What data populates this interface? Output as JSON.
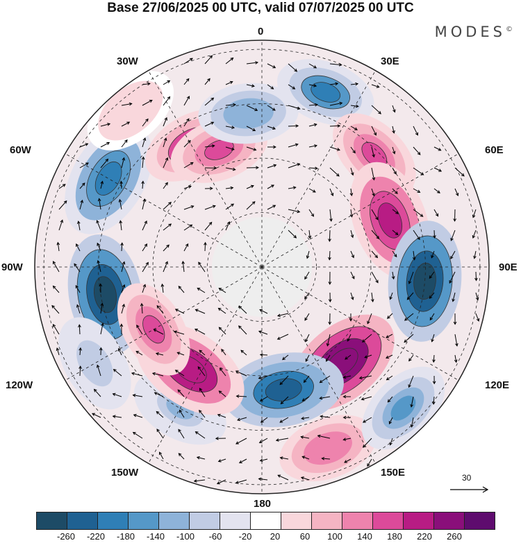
{
  "title": "Base 27/06/2025 00 UTC, valid 07/07/2025 00 UTC",
  "brand": "MODES",
  "brand_mark": "©",
  "longitude_labels": {
    "top": "0",
    "top_left": "30W",
    "top_right": "30E",
    "upper_left": "60W",
    "upper_right": "60E",
    "left": "90W",
    "right": "90E",
    "lower_left": "120W",
    "lower_right": "120E",
    "bottom_left": "150W",
    "bottom_right": "150E",
    "bottom": "180"
  },
  "colorbar": {
    "ticks": [
      "-260",
      "-220",
      "-180",
      "-140",
      "-100",
      "-60",
      "-20",
      "20",
      "60",
      "100",
      "140",
      "180",
      "220",
      "260"
    ],
    "colors": [
      "#1d4b66",
      "#1f6192",
      "#2f7fb6",
      "#5598c8",
      "#8eb3d9",
      "#c1cce4",
      "#e3e3ef",
      "#ffffff",
      "#f9d7dc",
      "#f5b4c3",
      "#ee83ad",
      "#dc4a9a",
      "#b81c84",
      "#8a0f7a",
      "#5e0c6e"
    ]
  },
  "vector_reference": {
    "value": "30"
  },
  "anomaly_blobs": [
    {
      "lon": -150,
      "r": 0.72,
      "val": -100
    },
    {
      "lon": -100,
      "r": 0.7,
      "val": -260
    },
    {
      "lon": -60,
      "r": 0.78,
      "val": -200
    },
    {
      "lon": -30,
      "r": 0.62,
      "val": 180
    },
    {
      "lon": -20,
      "r": 0.55,
      "val": 160
    },
    {
      "lon": -5,
      "r": 0.68,
      "val": -120
    },
    {
      "lon": 20,
      "r": 0.82,
      "val": -180
    },
    {
      "lon": 45,
      "r": 0.7,
      "val": 160
    },
    {
      "lon": 70,
      "r": 0.6,
      "val": 200
    },
    {
      "lon": 95,
      "r": 0.72,
      "val": -260
    },
    {
      "lon": 140,
      "r": 0.55,
      "val": 260
    },
    {
      "lon": 170,
      "r": 0.55,
      "val": -240
    },
    {
      "lon": -145,
      "r": 0.55,
      "val": 220
    },
    {
      "lon": -120,
      "r": 0.55,
      "val": 160
    },
    {
      "lon": 160,
      "r": 0.85,
      "val": 140
    },
    {
      "lon": 135,
      "r": 0.88,
      "val": -140
    },
    {
      "lon": -120,
      "r": 0.85,
      "val": -80
    },
    {
      "lon": -40,
      "r": 0.9,
      "val": 60
    }
  ]
}
